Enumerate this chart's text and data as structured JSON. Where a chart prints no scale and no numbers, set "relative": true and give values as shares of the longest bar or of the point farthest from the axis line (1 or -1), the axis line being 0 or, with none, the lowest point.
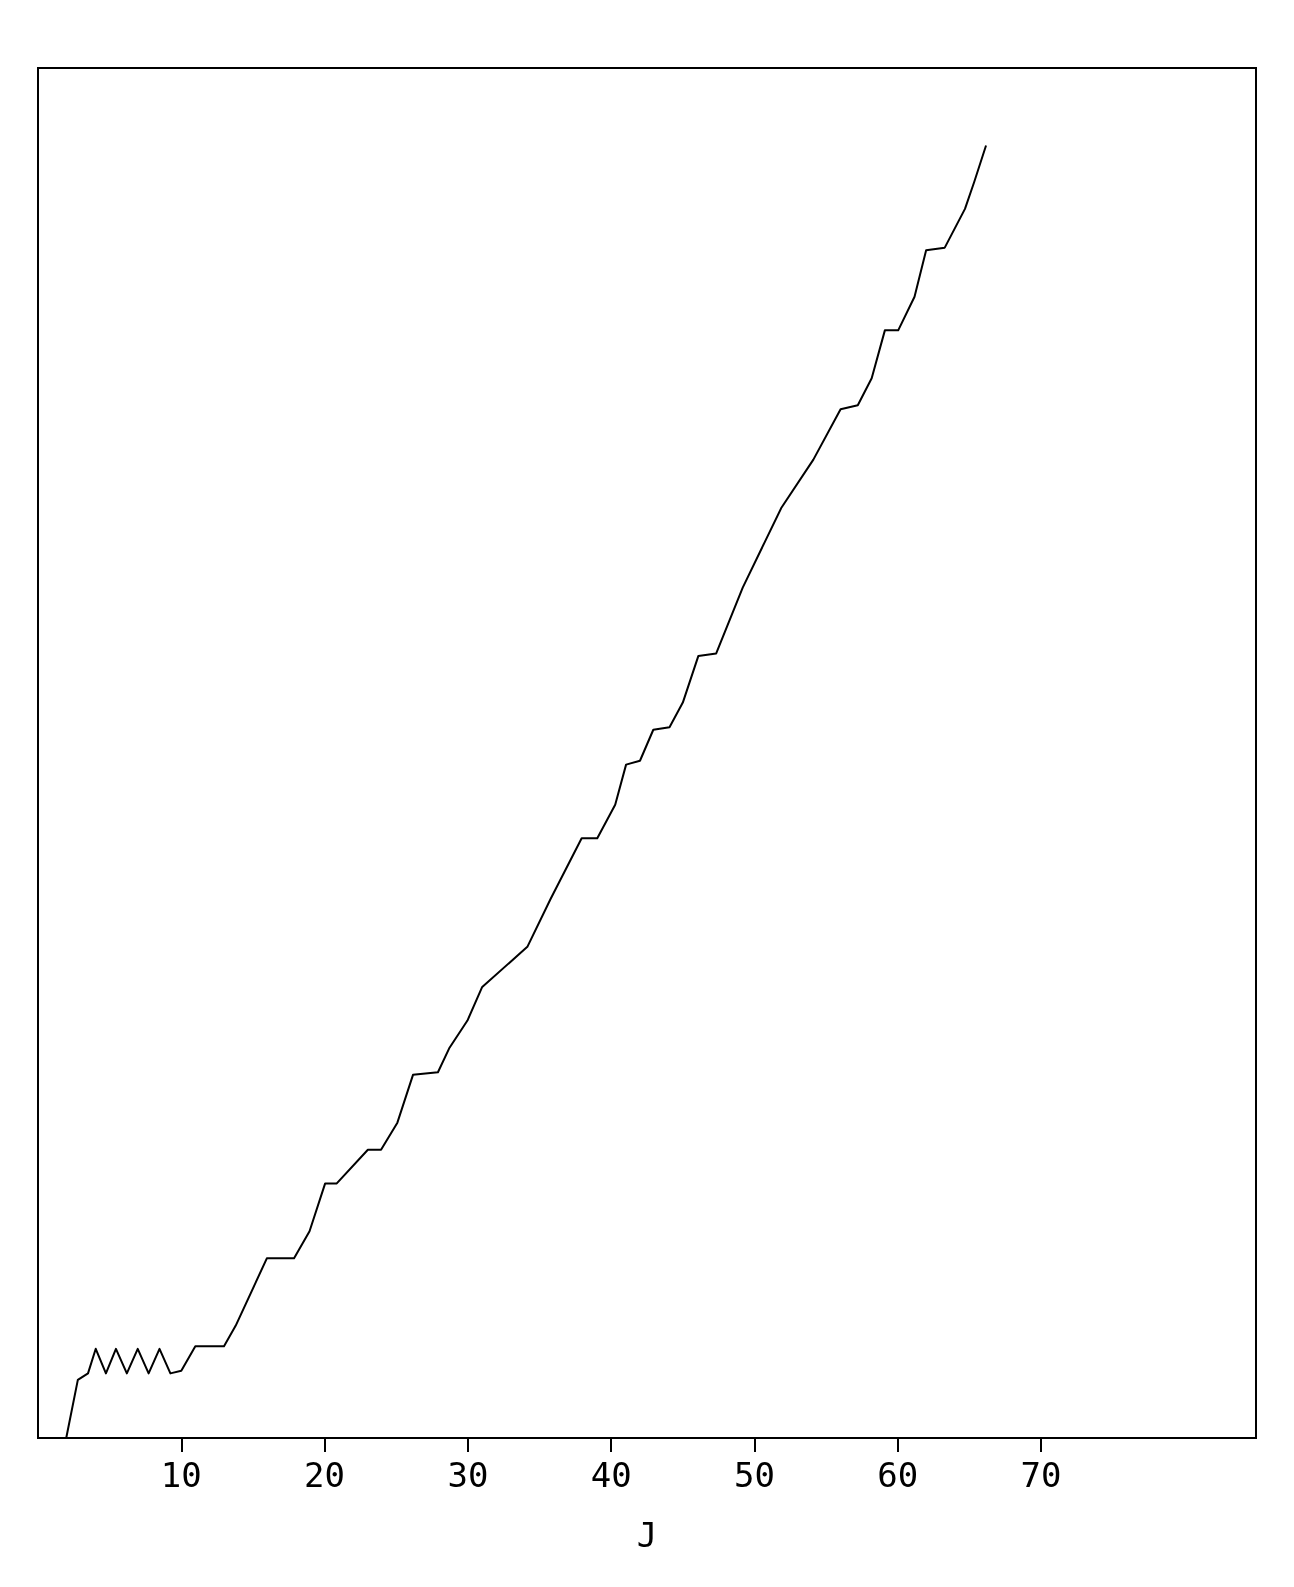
{
  "chart_data": {
    "type": "line",
    "xlabel": "J",
    "relative": true,
    "color": "#000000",
    "marker": "none",
    "line_style": "solid",
    "grid": false,
    "xlim": [
      0,
      85
    ],
    "xticks": [
      10,
      20,
      30,
      40,
      50,
      60,
      70
    ],
    "x": [
      1.97,
      2.78,
      3.49,
      4.03,
      4.74,
      5.44,
      6.2,
      6.96,
      7.72,
      8.48,
      9.24,
      10,
      10.98,
      12.98,
      13.8,
      15.97,
      17.87,
      18.95,
      20.04,
      20.85,
      23.02,
      23.94,
      25.08,
      26.17,
      27.91,
      28.72,
      29.97,
      31,
      34.15,
      35.77,
      37.94,
      39.03,
      40.28,
      41.04,
      42.01,
      42.94,
      44.07,
      45,
      46.08,
      47.33,
      49.18,
      51.89,
      54.11,
      56.01,
      57.21,
      58.18,
      59.1,
      60.03,
      61.17,
      61.98,
      63.28,
      64.69,
      65.34,
      66.16
    ],
    "values": [
      0,
      0.045,
      0.05,
      0.069,
      0.05,
      0.069,
      0.05,
      0.069,
      0.05,
      0.069,
      0.05,
      0.052,
      0.071,
      0.071,
      0.087,
      0.139,
      0.139,
      0.16,
      0.197,
      0.197,
      0.223,
      0.223,
      0.244,
      0.281,
      0.283,
      0.302,
      0.323,
      0.349,
      0.38,
      0.417,
      0.464,
      0.464,
      0.49,
      0.521,
      0.524,
      0.548,
      0.55,
      0.569,
      0.605,
      0.607,
      0.658,
      0.72,
      0.757,
      0.796,
      0.799,
      0.82,
      0.857,
      0.857,
      0.883,
      0.919,
      0.921,
      0.951,
      0.972,
      1
    ]
  }
}
